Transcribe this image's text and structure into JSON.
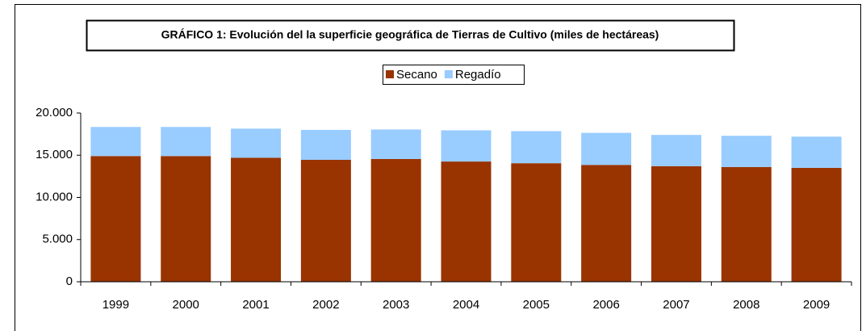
{
  "chart_data": {
    "type": "stacked_bar",
    "title": "GRÁFICO 1: Evolución del la superficie geográfica de Tierras de Cultivo (miles de hectáreas)",
    "categories": [
      "1999",
      "2000",
      "2001",
      "2002",
      "2003",
      "2004",
      "2005",
      "2006",
      "2007",
      "2008",
      "2009"
    ],
    "series": [
      {
        "name": "Secano",
        "color": "#993300",
        "values": [
          14900,
          14900,
          14700,
          14450,
          14550,
          14250,
          14050,
          13850,
          13700,
          13600,
          13500
        ]
      },
      {
        "name": "Regadío",
        "color": "#99ccff",
        "values": [
          3450,
          3450,
          3450,
          3550,
          3500,
          3700,
          3800,
          3800,
          3700,
          3700,
          3700
        ]
      }
    ],
    "ylim": [
      0,
      20000
    ],
    "yticks": [
      0,
      {
        "value": 5000,
        "label": "5.000"
      },
      {
        "value": 10000,
        "label": "10.000"
      },
      {
        "value": 15000,
        "label": "15.000"
      },
      {
        "value": 20000,
        "label": "20.000"
      }
    ],
    "legend": "top",
    "grid": false
  }
}
